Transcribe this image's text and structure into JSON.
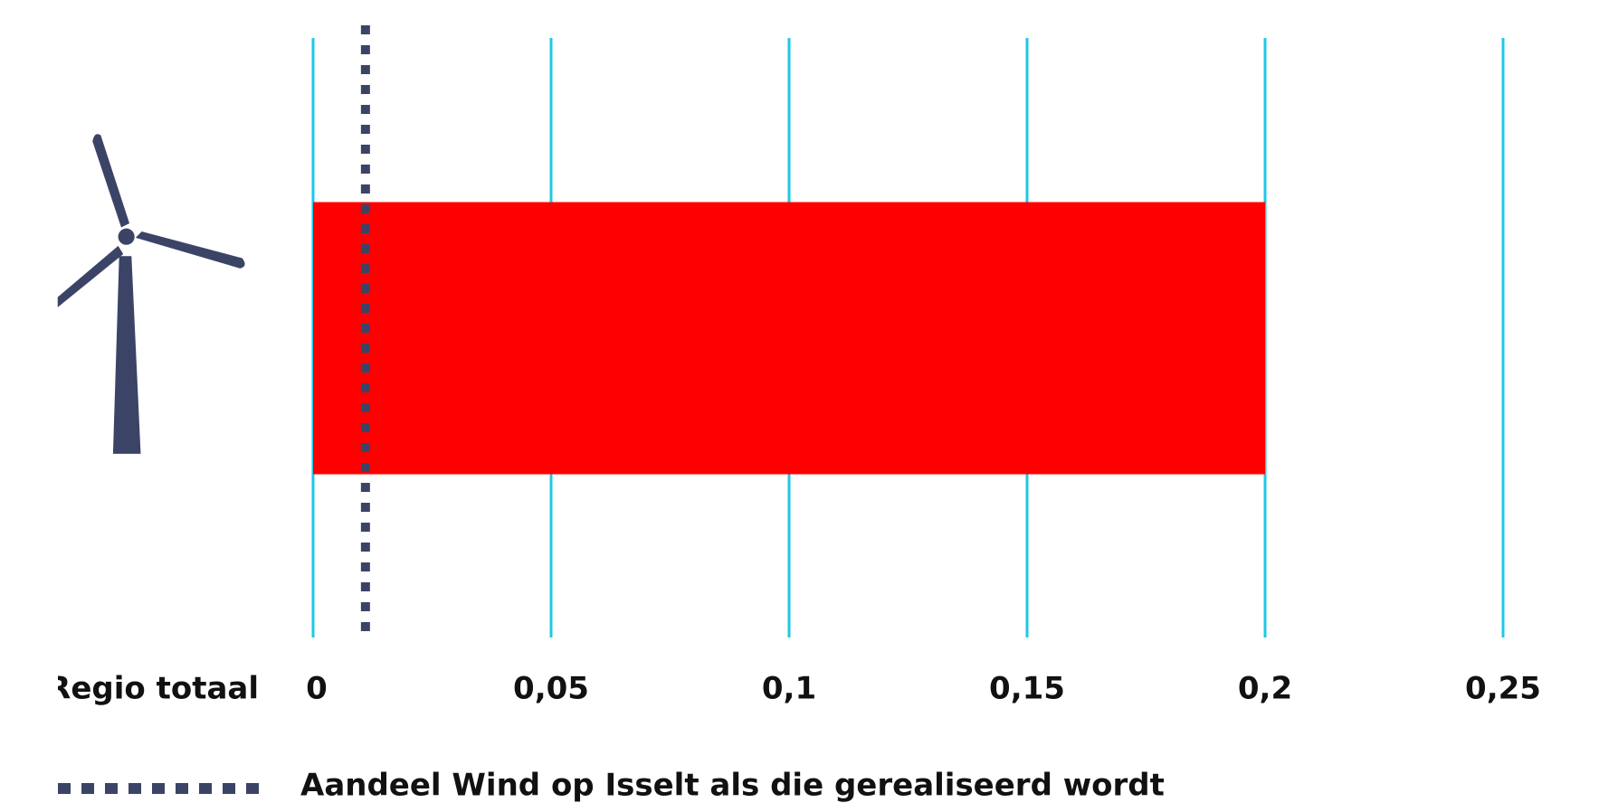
{
  "chart_data": {
    "type": "barh",
    "categories": [
      "Regio totaal"
    ],
    "values": [
      0.2
    ],
    "color": "#ff0000",
    "xlim": [
      0,
      0.25
    ],
    "xticks": [
      0,
      {
        "value": 0.05,
        "label": "0,05"
      },
      {
        "value": 0.1,
        "label": "0,1"
      },
      {
        "value": 0.15,
        "label": "0,15"
      },
      {
        "value": 0.2,
        "label": "0,2"
      },
      {
        "value": 0.25,
        "label": "0,25"
      }
    ],
    "grid": true,
    "grid_color": "#1ec8e6",
    "reference_line": {
      "name": "Aandeel Wind op Isselt als die gerealiseerd wordt",
      "value": 0.011,
      "color": "#3b4466"
    }
  }
}
